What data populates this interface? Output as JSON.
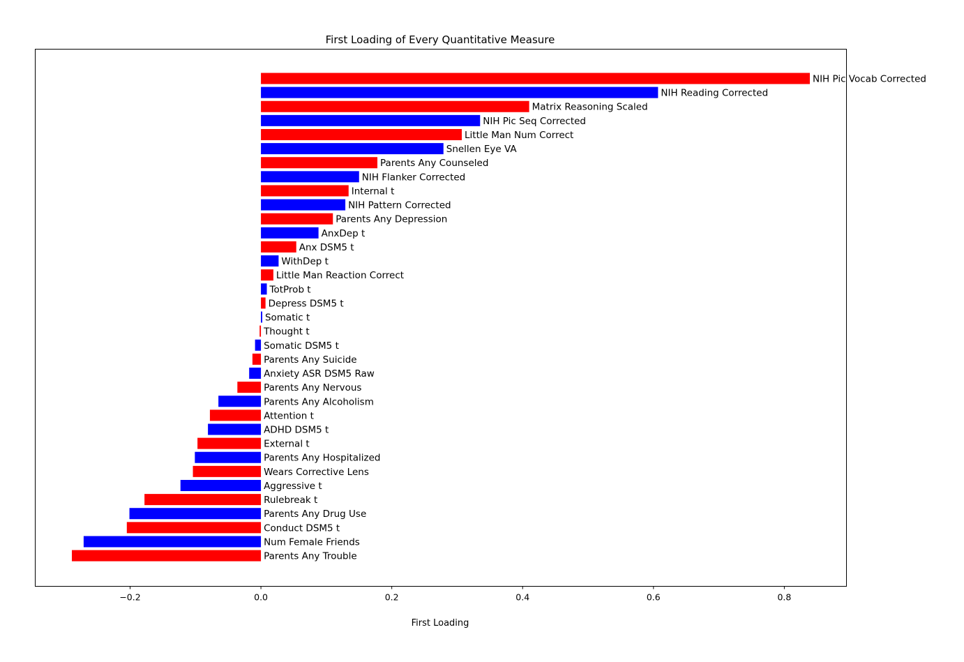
{
  "chart_data": {
    "type": "bar",
    "orientation": "horizontal",
    "title": "First Loading of Every Quantitative Measure",
    "xlabel": "First Loading",
    "ylabel": "",
    "xlim": [
      -0.345,
      0.895
    ],
    "grid": false,
    "legend": "none",
    "colors": {
      "red": "#ff0000",
      "blue": "#0000ff"
    },
    "xticks": [
      {
        "value": -0.2,
        "label": "−0.2"
      },
      {
        "value": 0.0,
        "label": "0.0"
      },
      {
        "value": 0.2,
        "label": "0.2"
      },
      {
        "value": 0.4,
        "label": "0.4"
      },
      {
        "value": 0.6,
        "label": "0.6"
      },
      {
        "value": 0.8,
        "label": "0.8"
      }
    ],
    "bars": [
      {
        "label": "NIH Pic Vocab Corrected",
        "value": 0.839,
        "color": "#ff0000"
      },
      {
        "label": "NIH Reading Corrected",
        "value": 0.607,
        "color": "#0000ff"
      },
      {
        "label": "Matrix Reasoning Scaled",
        "value": 0.41,
        "color": "#ff0000"
      },
      {
        "label": "NIH Pic Seq Corrected",
        "value": 0.335,
        "color": "#0000ff"
      },
      {
        "label": "Little Man Num Correct",
        "value": 0.307,
        "color": "#ff0000"
      },
      {
        "label": "Snellen Eye VA",
        "value": 0.279,
        "color": "#0000ff"
      },
      {
        "label": "Parents Any Counseled",
        "value": 0.178,
        "color": "#ff0000"
      },
      {
        "label": "NIH Flanker Corrected",
        "value": 0.15,
        "color": "#0000ff"
      },
      {
        "label": "Internal t",
        "value": 0.134,
        "color": "#ff0000"
      },
      {
        "label": "NIH Pattern Corrected",
        "value": 0.129,
        "color": "#0000ff"
      },
      {
        "label": "Parents Any Depression",
        "value": 0.11,
        "color": "#ff0000"
      },
      {
        "label": "AnxDep t",
        "value": 0.088,
        "color": "#0000ff"
      },
      {
        "label": "Anx DSM5 t",
        "value": 0.054,
        "color": "#ff0000"
      },
      {
        "label": "WithDep t",
        "value": 0.027,
        "color": "#0000ff"
      },
      {
        "label": "Little Man Reaction Correct",
        "value": 0.019,
        "color": "#ff0000"
      },
      {
        "label": "TotProb t",
        "value": 0.009,
        "color": "#0000ff"
      },
      {
        "label": "Depress DSM5 t",
        "value": 0.007,
        "color": "#ff0000"
      },
      {
        "label": "Somatic t",
        "value": 0.002,
        "color": "#0000ff"
      },
      {
        "label": "Thought t",
        "value": -0.002,
        "color": "#ff0000"
      },
      {
        "label": "Somatic DSM5 t",
        "value": -0.009,
        "color": "#0000ff"
      },
      {
        "label": "Parents Any Suicide",
        "value": -0.013,
        "color": "#ff0000"
      },
      {
        "label": "Anxiety ASR DSM5 Raw",
        "value": -0.018,
        "color": "#0000ff"
      },
      {
        "label": "Parents Any Nervous",
        "value": -0.036,
        "color": "#ff0000"
      },
      {
        "label": "Parents Any Alcoholism",
        "value": -0.065,
        "color": "#0000ff"
      },
      {
        "label": "Attention t",
        "value": -0.078,
        "color": "#ff0000"
      },
      {
        "label": "ADHD DSM5 t",
        "value": -0.081,
        "color": "#0000ff"
      },
      {
        "label": "External t",
        "value": -0.097,
        "color": "#ff0000"
      },
      {
        "label": "Parents Any Hospitalized",
        "value": -0.101,
        "color": "#0000ff"
      },
      {
        "label": "Wears Corrective Lens",
        "value": -0.104,
        "color": "#ff0000"
      },
      {
        "label": "Aggressive t",
        "value": -0.123,
        "color": "#0000ff"
      },
      {
        "label": "Rulebreak t",
        "value": -0.178,
        "color": "#ff0000"
      },
      {
        "label": "Parents Any Drug Use",
        "value": -0.201,
        "color": "#0000ff"
      },
      {
        "label": "Conduct DSM5 t",
        "value": -0.205,
        "color": "#ff0000"
      },
      {
        "label": "Num Female Friends",
        "value": -0.271,
        "color": "#0000ff"
      },
      {
        "label": "Parents Any Trouble",
        "value": -0.289,
        "color": "#ff0000"
      }
    ]
  }
}
